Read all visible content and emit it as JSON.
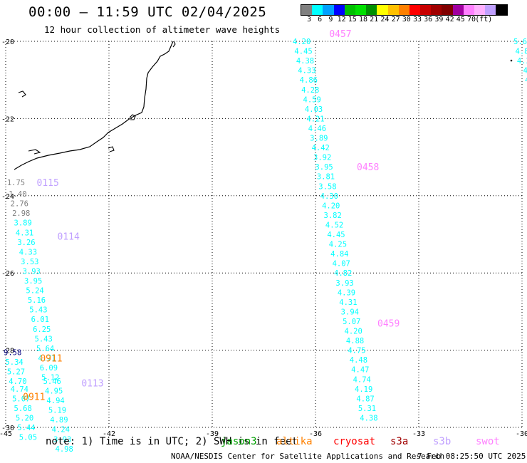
{
  "header": {
    "title": "00:00 — 11:59 UTC 02/04/2025",
    "subtitle": "12 hour collection of altimeter wave heights"
  },
  "colorbar": {
    "colors": [
      "#808080",
      "#00ffff",
      "#00a0ff",
      "#0000ff",
      "#00c000",
      "#00e000",
      "#009000",
      "#ffff00",
      "#ffc000",
      "#ff8000",
      "#ff0000",
      "#c80000",
      "#a00000",
      "#800000",
      "#a000a0",
      "#ff80ff",
      "#ffb0ff",
      "#c0a0ff",
      "#000000"
    ],
    "labels": [
      "3",
      "6",
      "9",
      "12",
      "15",
      "18",
      "21",
      "24",
      "27",
      "30",
      "33",
      "36",
      "39",
      "42",
      "45",
      "70",
      "(ft)"
    ]
  },
  "map": {
    "lon_range": [
      -45,
      -30
    ],
    "lat_range": [
      -30,
      -20
    ],
    "x_ticks": [
      "-45",
      "-42",
      "-39",
      "-36",
      "-33",
      "-30"
    ],
    "y_ticks": [
      "-20",
      "-22",
      "-24",
      "-26",
      "-28",
      "-30"
    ],
    "grid": "dotted",
    "coastline": "southeastern Brazil"
  },
  "track_labels": [
    {
      "text": "0115",
      "color": "#c0a0ff",
      "lon": -44.1,
      "lat": -23.65
    },
    {
      "text": "0114",
      "color": "#c0a0ff",
      "lon": -43.5,
      "lat": -25.05
    },
    {
      "text": "0113",
      "color": "#c0a0ff",
      "lon": -42.8,
      "lat": -28.85
    },
    {
      "text": "0911",
      "color": "#ff8000",
      "lon": -44.0,
      "lat": -28.2
    },
    {
      "text": "0911",
      "color": "#ff8000",
      "lon": -44.5,
      "lat": -29.2
    },
    {
      "text": "0457",
      "color": "#ff80ff",
      "lon": -35.6,
      "lat": -19.8
    },
    {
      "text": "0458",
      "color": "#ff80ff",
      "lon": -34.8,
      "lat": -23.25
    },
    {
      "text": "0459",
      "color": "#ff80ff",
      "lon": -34.2,
      "lat": -27.3
    }
  ],
  "tracks": [
    {
      "name": "0115",
      "points": [
        {
          "v": "1.75",
          "c": "#808080",
          "lon": -44.7,
          "lat": -23.65
        },
        {
          "v": "1.40",
          "c": "#808080",
          "lon": -44.65,
          "lat": -23.95
        },
        {
          "v": "2.76",
          "c": "#808080",
          "lon": -44.6,
          "lat": -24.2
        },
        {
          "v": "2.98",
          "c": "#808080",
          "lon": -44.55,
          "lat": -24.45
        }
      ]
    },
    {
      "name": "0114",
      "points": [
        {
          "v": "3.89",
          "c": "#00ffff",
          "lon": -44.5,
          "lat": -24.7
        },
        {
          "v": "4.31",
          "c": "#00ffff",
          "lon": -44.45,
          "lat": -24.95
        },
        {
          "v": "3.26",
          "c": "#00ffff",
          "lon": -44.4,
          "lat": -25.2
        },
        {
          "v": "4.33",
          "c": "#00ffff",
          "lon": -44.35,
          "lat": -25.45
        },
        {
          "v": "3.53",
          "c": "#00ffff",
          "lon": -44.3,
          "lat": -25.7
        },
        {
          "v": "3.93",
          "c": "#00ffff",
          "lon": -44.25,
          "lat": -25.95
        },
        {
          "v": "3.95",
          "c": "#00ffff",
          "lon": -44.2,
          "lat": -26.2
        },
        {
          "v": "5.24",
          "c": "#00ffff",
          "lon": -44.15,
          "lat": -26.45
        },
        {
          "v": "5.16",
          "c": "#00ffff",
          "lon": -44.1,
          "lat": -26.7
        },
        {
          "v": "5.43",
          "c": "#00ffff",
          "lon": -44.05,
          "lat": -26.95
        },
        {
          "v": "6.01",
          "c": "#00ffff",
          "lon": -44.0,
          "lat": -27.2
        },
        {
          "v": "6.25",
          "c": "#00ffff",
          "lon": -43.95,
          "lat": -27.45
        },
        {
          "v": "5.43",
          "c": "#00ffff",
          "lon": -43.9,
          "lat": -27.7
        },
        {
          "v": "5.64",
          "c": "#00ffff",
          "lon": -43.85,
          "lat": -27.95
        },
        {
          "v": "4.71",
          "c": "#00ffff",
          "lon": -43.8,
          "lat": -28.2
        },
        {
          "v": "6.09",
          "c": "#00ffff",
          "lon": -43.75,
          "lat": -28.45
        }
      ]
    },
    {
      "name": "0113",
      "points": [
        {
          "v": "5.12",
          "c": "#00ffff",
          "lon": -43.7,
          "lat": -28.7
        },
        {
          "v": "5.46",
          "c": "#00ffff",
          "lon": -43.65,
          "lat": -28.8
        },
        {
          "v": "4.95",
          "c": "#00ffff",
          "lon": -43.6,
          "lat": -29.05
        },
        {
          "v": "4.94",
          "c": "#00ffff",
          "lon": -43.55,
          "lat": -29.3
        },
        {
          "v": "5.19",
          "c": "#00ffff",
          "lon": -43.5,
          "lat": -29.55
        },
        {
          "v": "4.89",
          "c": "#00ffff",
          "lon": -43.45,
          "lat": -29.8
        },
        {
          "v": "4.24",
          "c": "#00ffff",
          "lon": -43.4,
          "lat": -30.05
        },
        {
          "v": "3.93",
          "c": "#00ffff",
          "lon": -43.35,
          "lat": -30.3
        },
        {
          "v": "4.98",
          "c": "#00ffff",
          "lon": -43.3,
          "lat": -30.55
        }
      ]
    },
    {
      "name": "0911",
      "points": [
        {
          "v": "9.58",
          "c": "#000080",
          "lon": -44.8,
          "lat": -28.05
        },
        {
          "v": "5.34",
          "c": "#00ffff",
          "lon": -44.75,
          "lat": -28.3
        },
        {
          "v": "5.27",
          "c": "#00ffff",
          "lon": -44.7,
          "lat": -28.55
        },
        {
          "v": "4.70",
          "c": "#00ffff",
          "lon": -44.65,
          "lat": -28.8
        },
        {
          "v": "4.74",
          "c": "#00ffff",
          "lon": -44.6,
          "lat": -29.0
        },
        {
          "v": "5.07",
          "c": "#00ffff",
          "lon": -44.55,
          "lat": -29.25
        },
        {
          "v": "5.68",
          "c": "#00ffff",
          "lon": -44.5,
          "lat": -29.5
        },
        {
          "v": "5.20",
          "c": "#00ffff",
          "lon": -44.45,
          "lat": -29.75
        },
        {
          "v": "5.44",
          "c": "#00ffff",
          "lon": -44.4,
          "lat": -30.0
        },
        {
          "v": "5.05",
          "c": "#00ffff",
          "lon": -44.35,
          "lat": -30.25
        }
      ]
    },
    {
      "name": "0457",
      "points": [
        {
          "v": "4.20",
          "c": "#00ffff",
          "lon": -36.4,
          "lat": -20.0
        },
        {
          "v": "4.45",
          "c": "#00ffff",
          "lon": -36.35,
          "lat": -20.25
        },
        {
          "v": "4.38",
          "c": "#00ffff",
          "lon": -36.3,
          "lat": -20.5
        },
        {
          "v": "4.33",
          "c": "#00ffff",
          "lon": -36.25,
          "lat": -20.75
        },
        {
          "v": "4.86",
          "c": "#00ffff",
          "lon": -36.2,
          "lat": -21.0
        },
        {
          "v": "4.28",
          "c": "#00ffff",
          "lon": -36.15,
          "lat": -21.25
        },
        {
          "v": "4.59",
          "c": "#00ffff",
          "lon": -36.1,
          "lat": -21.5
        },
        {
          "v": "4.03",
          "c": "#00ffff",
          "lon": -36.05,
          "lat": -21.75
        },
        {
          "v": "4.21",
          "c": "#00ffff",
          "lon": -36.0,
          "lat": -22.0
        },
        {
          "v": "4.46",
          "c": "#00ffff",
          "lon": -35.95,
          "lat": -22.25
        },
        {
          "v": "3.89",
          "c": "#00ffff",
          "lon": -35.9,
          "lat": -22.5
        },
        {
          "v": "4.42",
          "c": "#00ffff",
          "lon": -35.85,
          "lat": -22.75
        },
        {
          "v": "3.92",
          "c": "#00ffff",
          "lon": -35.8,
          "lat": -23.0
        }
      ]
    },
    {
      "name": "0458",
      "points": [
        {
          "v": "3.95",
          "c": "#00ffff",
          "lon": -35.75,
          "lat": -23.25
        },
        {
          "v": "3.81",
          "c": "#00ffff",
          "lon": -35.7,
          "lat": -23.5
        },
        {
          "v": "3.58",
          "c": "#00ffff",
          "lon": -35.65,
          "lat": -23.75
        },
        {
          "v": "4.30",
          "c": "#00ffff",
          "lon": -35.6,
          "lat": -24.0
        },
        {
          "v": "4.20",
          "c": "#00ffff",
          "lon": -35.55,
          "lat": -24.25
        },
        {
          "v": "3.82",
          "c": "#00ffff",
          "lon": -35.5,
          "lat": -24.5
        },
        {
          "v": "4.52",
          "c": "#00ffff",
          "lon": -35.45,
          "lat": -24.75
        },
        {
          "v": "4.45",
          "c": "#00ffff",
          "lon": -35.4,
          "lat": -25.0
        },
        {
          "v": "4.25",
          "c": "#00ffff",
          "lon": -35.35,
          "lat": -25.25
        },
        {
          "v": "4.84",
          "c": "#00ffff",
          "lon": -35.3,
          "lat": -25.5
        },
        {
          "v": "4.07",
          "c": "#00ffff",
          "lon": -35.25,
          "lat": -25.75
        },
        {
          "v": "4.82",
          "c": "#00ffff",
          "lon": -35.2,
          "lat": -26.0
        },
        {
          "v": "3.93",
          "c": "#00ffff",
          "lon": -35.15,
          "lat": -26.25
        },
        {
          "v": "4.39",
          "c": "#00ffff",
          "lon": -35.1,
          "lat": -26.5
        }
      ]
    },
    {
      "name": "0459",
      "points": [
        {
          "v": "4.31",
          "c": "#00ffff",
          "lon": -35.05,
          "lat": -26.75
        },
        {
          "v": "3.94",
          "c": "#00ffff",
          "lon": -35.0,
          "lat": -27.0
        },
        {
          "v": "5.07",
          "c": "#00ffff",
          "lon": -34.95,
          "lat": -27.25
        },
        {
          "v": "4.20",
          "c": "#00ffff",
          "lon": -34.9,
          "lat": -27.5
        },
        {
          "v": "4.88",
          "c": "#00ffff",
          "lon": -34.85,
          "lat": -27.75
        },
        {
          "v": "4.75",
          "c": "#00ffff",
          "lon": -34.8,
          "lat": -28.0
        },
        {
          "v": "4.48",
          "c": "#00ffff",
          "lon": -34.75,
          "lat": -28.25
        },
        {
          "v": "4.47",
          "c": "#00ffff",
          "lon": -34.7,
          "lat": -28.5
        },
        {
          "v": "4.74",
          "c": "#00ffff",
          "lon": -34.65,
          "lat": -28.75
        },
        {
          "v": "4.19",
          "c": "#00ffff",
          "lon": -34.6,
          "lat": -29.0
        },
        {
          "v": "4.87",
          "c": "#00ffff",
          "lon": -34.55,
          "lat": -29.25
        },
        {
          "v": "5.31",
          "c": "#00ffff",
          "lon": -34.5,
          "lat": -29.5
        },
        {
          "v": "4.38",
          "c": "#00ffff",
          "lon": -34.45,
          "lat": -29.75
        }
      ]
    },
    {
      "name": "edge",
      "points": [
        {
          "v": "5.6",
          "c": "#00ffff",
          "lon": -30.05,
          "lat": -20.0
        },
        {
          "v": "4.8",
          "c": "#00ffff",
          "lon": -30.0,
          "lat": -20.25
        },
        {
          "v": "4.2",
          "c": "#00ffff",
          "lon": -29.95,
          "lat": -20.5
        },
        {
          "v": "4",
          "c": "#00ffff",
          "lon": -29.9,
          "lat": -20.75
        },
        {
          "v": "4",
          "c": "#00ffff",
          "lon": -29.85,
          "lat": -21.0
        }
      ]
    }
  ],
  "note": {
    "text": "note: 1) Time is in UTC; 2) SWH is in feet",
    "legend": [
      {
        "name": "jason3",
        "color": "#00a000"
      },
      {
        "name": "altika",
        "color": "#ff8000"
      },
      {
        "name": "cryosat",
        "color": "#ff0000"
      },
      {
        "name": "s3a",
        "color": "#a00000"
      },
      {
        "name": "s3b",
        "color": "#c0a0ff"
      },
      {
        "name": "swot",
        "color": "#ff80ff"
      }
    ]
  },
  "footer": {
    "org": "NOAA/NESDIS Center for Satellite Applications and Research",
    "timestamp": "7 Feb 08:25:50 UTC 2025"
  }
}
